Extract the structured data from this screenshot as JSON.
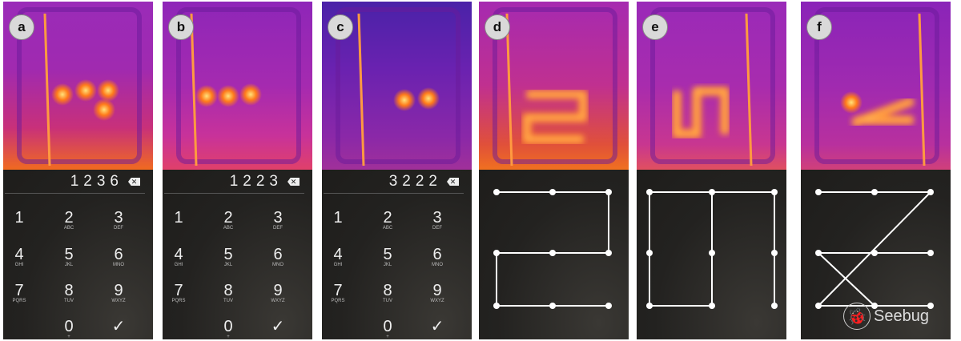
{
  "panels": [
    {
      "label": "a",
      "type": "pin",
      "entered": "1236"
    },
    {
      "label": "b",
      "type": "pin",
      "entered": "1223"
    },
    {
      "label": "c",
      "type": "pin",
      "entered": "3222"
    },
    {
      "label": "d",
      "type": "pattern",
      "segments": [
        [
          1,
          3
        ],
        [
          3,
          6
        ],
        [
          6,
          4
        ],
        [
          4,
          7
        ],
        [
          7,
          9
        ]
      ]
    },
    {
      "label": "e",
      "type": "pattern",
      "segments": [
        [
          7,
          1
        ],
        [
          1,
          3
        ],
        [
          2,
          8
        ],
        [
          8,
          7
        ],
        [
          3,
          9
        ]
      ]
    },
    {
      "label": "f",
      "type": "pattern",
      "segments": [
        [
          1,
          3
        ],
        [
          3,
          7
        ],
        [
          4,
          6
        ],
        [
          4,
          8
        ],
        [
          7,
          9
        ]
      ]
    }
  ],
  "keypad": [
    {
      "d": "1",
      "s": ""
    },
    {
      "d": "2",
      "s": "ABC"
    },
    {
      "d": "3",
      "s": "DEF"
    },
    {
      "d": "4",
      "s": "GHI"
    },
    {
      "d": "5",
      "s": "JKL"
    },
    {
      "d": "6",
      "s": "MNO"
    },
    {
      "d": "7",
      "s": "PQRS"
    },
    {
      "d": "8",
      "s": "TUV"
    },
    {
      "d": "9",
      "s": "WXYZ"
    },
    {
      "d": "",
      "s": ""
    },
    {
      "d": "0",
      "s": "+"
    },
    {
      "d": "✓",
      "s": ""
    }
  ],
  "icons": {
    "backspace": "backspace-icon",
    "confirm": "checkmark-icon"
  },
  "watermark": {
    "text": "Seebug"
  },
  "colors": {
    "thermal_bg": "#8a1fb0",
    "thermal_hot": "#ffe27a",
    "thermal_warm": "#ff7a1a",
    "phone_bg": "#232220"
  }
}
